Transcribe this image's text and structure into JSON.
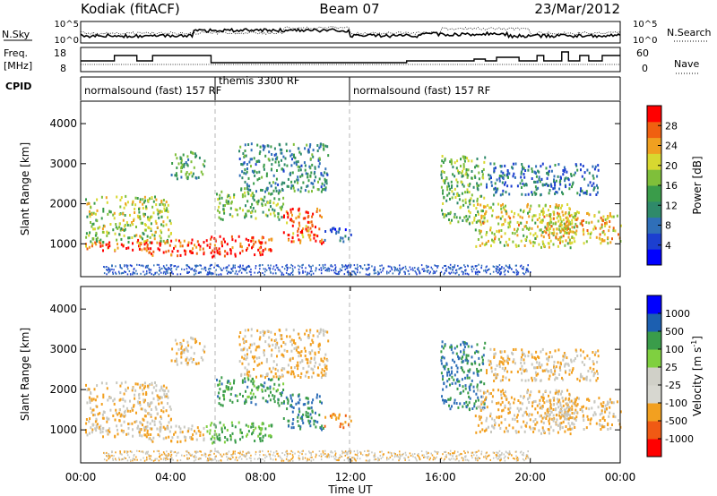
{
  "header": {
    "station": "Kodiak (fitACF)",
    "beam": "Beam 07",
    "date": "23/Mar/2012"
  },
  "panels": {
    "nsky_label": "N.Sky",
    "nsearch_label": "N.Search",
    "freq_label_1": "Freq.",
    "freq_label_2": "[MHz]",
    "nave_label": "Nave",
    "cpid_label": "CPID",
    "nsky_ticks": [
      "10^5",
      "10^0"
    ],
    "nsearch_ticks": [
      "10^5",
      "10^0"
    ],
    "freq_ticks": [
      "18",
      "8"
    ],
    "nave_ticks": [
      "60",
      "0"
    ]
  },
  "cpid": [
    {
      "label": "normalsound (fast) 157 RF"
    },
    {
      "label": "themis 3300 RF"
    },
    {
      "label": "normalsound (fast) 157 RF"
    }
  ],
  "power_colorbar": {
    "title": "Power [dB]",
    "ticks": [
      "28",
      "24",
      "20",
      "16",
      "12",
      "8",
      "4"
    ],
    "colors": [
      "#0000ff",
      "#1c3fd0",
      "#2f6fb8",
      "#2f8a6a",
      "#3a9c4a",
      "#7fbf3a",
      "#d8d830",
      "#f0a020",
      "#f06010",
      "#ff0000"
    ]
  },
  "velocity_colorbar": {
    "title": "Velocity [m s",
    "title_sup": "-1",
    "title_end": "]",
    "ticks": [
      "1000",
      "500",
      "100",
      "25",
      "-25",
      "-100",
      "-500",
      "-1000"
    ],
    "colors": [
      "#ff0000",
      "#f05a14",
      "#f2a020",
      "#d7d7d0",
      "#d0d0c8",
      "#7fd040",
      "#3a9c4a",
      "#1c5fb0",
      "#0000ff"
    ]
  },
  "chart_data": {
    "type": "heatmap",
    "x": {
      "label": "Time UT",
      "ticks": [
        "00:00",
        "04:00",
        "08:00",
        "12:00",
        "16:00",
        "20:00",
        "00:00"
      ],
      "range_hours": [
        0,
        24
      ]
    },
    "y": {
      "label": "Slant Range [km]",
      "ticks": [
        "1000",
        "2000",
        "3000",
        "4000"
      ],
      "range_km": [
        180,
        4560
      ]
    },
    "panels": [
      "Power",
      "Velocity"
    ],
    "cpid_boundaries_hours": [
      6.0,
      12.0
    ],
    "scatter_regions": [
      {
        "t0": 0.2,
        "t1": 4.0,
        "r0": 1000,
        "r1": 2200,
        "power_db": 18,
        "velocity": -25
      },
      {
        "t0": 0.2,
        "t1": 3.0,
        "r0": 820,
        "r1": 1050,
        "power_db": 26,
        "velocity": -25
      },
      {
        "t0": 2.5,
        "t1": 5.5,
        "r0": 700,
        "r1": 1100,
        "power_db": 27,
        "velocity": -25
      },
      {
        "t0": 5.5,
        "t1": 8.5,
        "r0": 650,
        "r1": 1200,
        "power_db": 28,
        "velocity": 60
      },
      {
        "t0": 4.0,
        "t1": 5.5,
        "r0": 2600,
        "r1": 3300,
        "power_db": 14,
        "velocity": -25
      },
      {
        "t0": 6.0,
        "t1": 9.0,
        "r0": 1600,
        "r1": 2300,
        "power_db": 16,
        "velocity": 80
      },
      {
        "t0": 7.0,
        "t1": 11.0,
        "r0": 2300,
        "r1": 3500,
        "power_db": 12,
        "velocity": -25
      },
      {
        "t0": 9.0,
        "t1": 10.8,
        "r0": 1000,
        "r1": 1900,
        "power_db": 26,
        "velocity": 100
      },
      {
        "t0": 10.8,
        "t1": 12.0,
        "r0": 1050,
        "r1": 1400,
        "power_db": 8,
        "velocity": -100
      },
      {
        "t0": 16.0,
        "t1": 18.0,
        "r0": 1500,
        "r1": 3200,
        "power_db": 16,
        "velocity": 100
      },
      {
        "t0": 17.5,
        "t1": 22.0,
        "r0": 900,
        "r1": 2000,
        "power_db": 20,
        "velocity": -25
      },
      {
        "t0": 20.5,
        "t1": 24.0,
        "r0": 1000,
        "r1": 1800,
        "power_db": 22,
        "velocity": -25
      },
      {
        "t0": 18.0,
        "t1": 23.0,
        "r0": 2200,
        "r1": 3000,
        "power_db": 10,
        "velocity": -25
      }
    ]
  }
}
